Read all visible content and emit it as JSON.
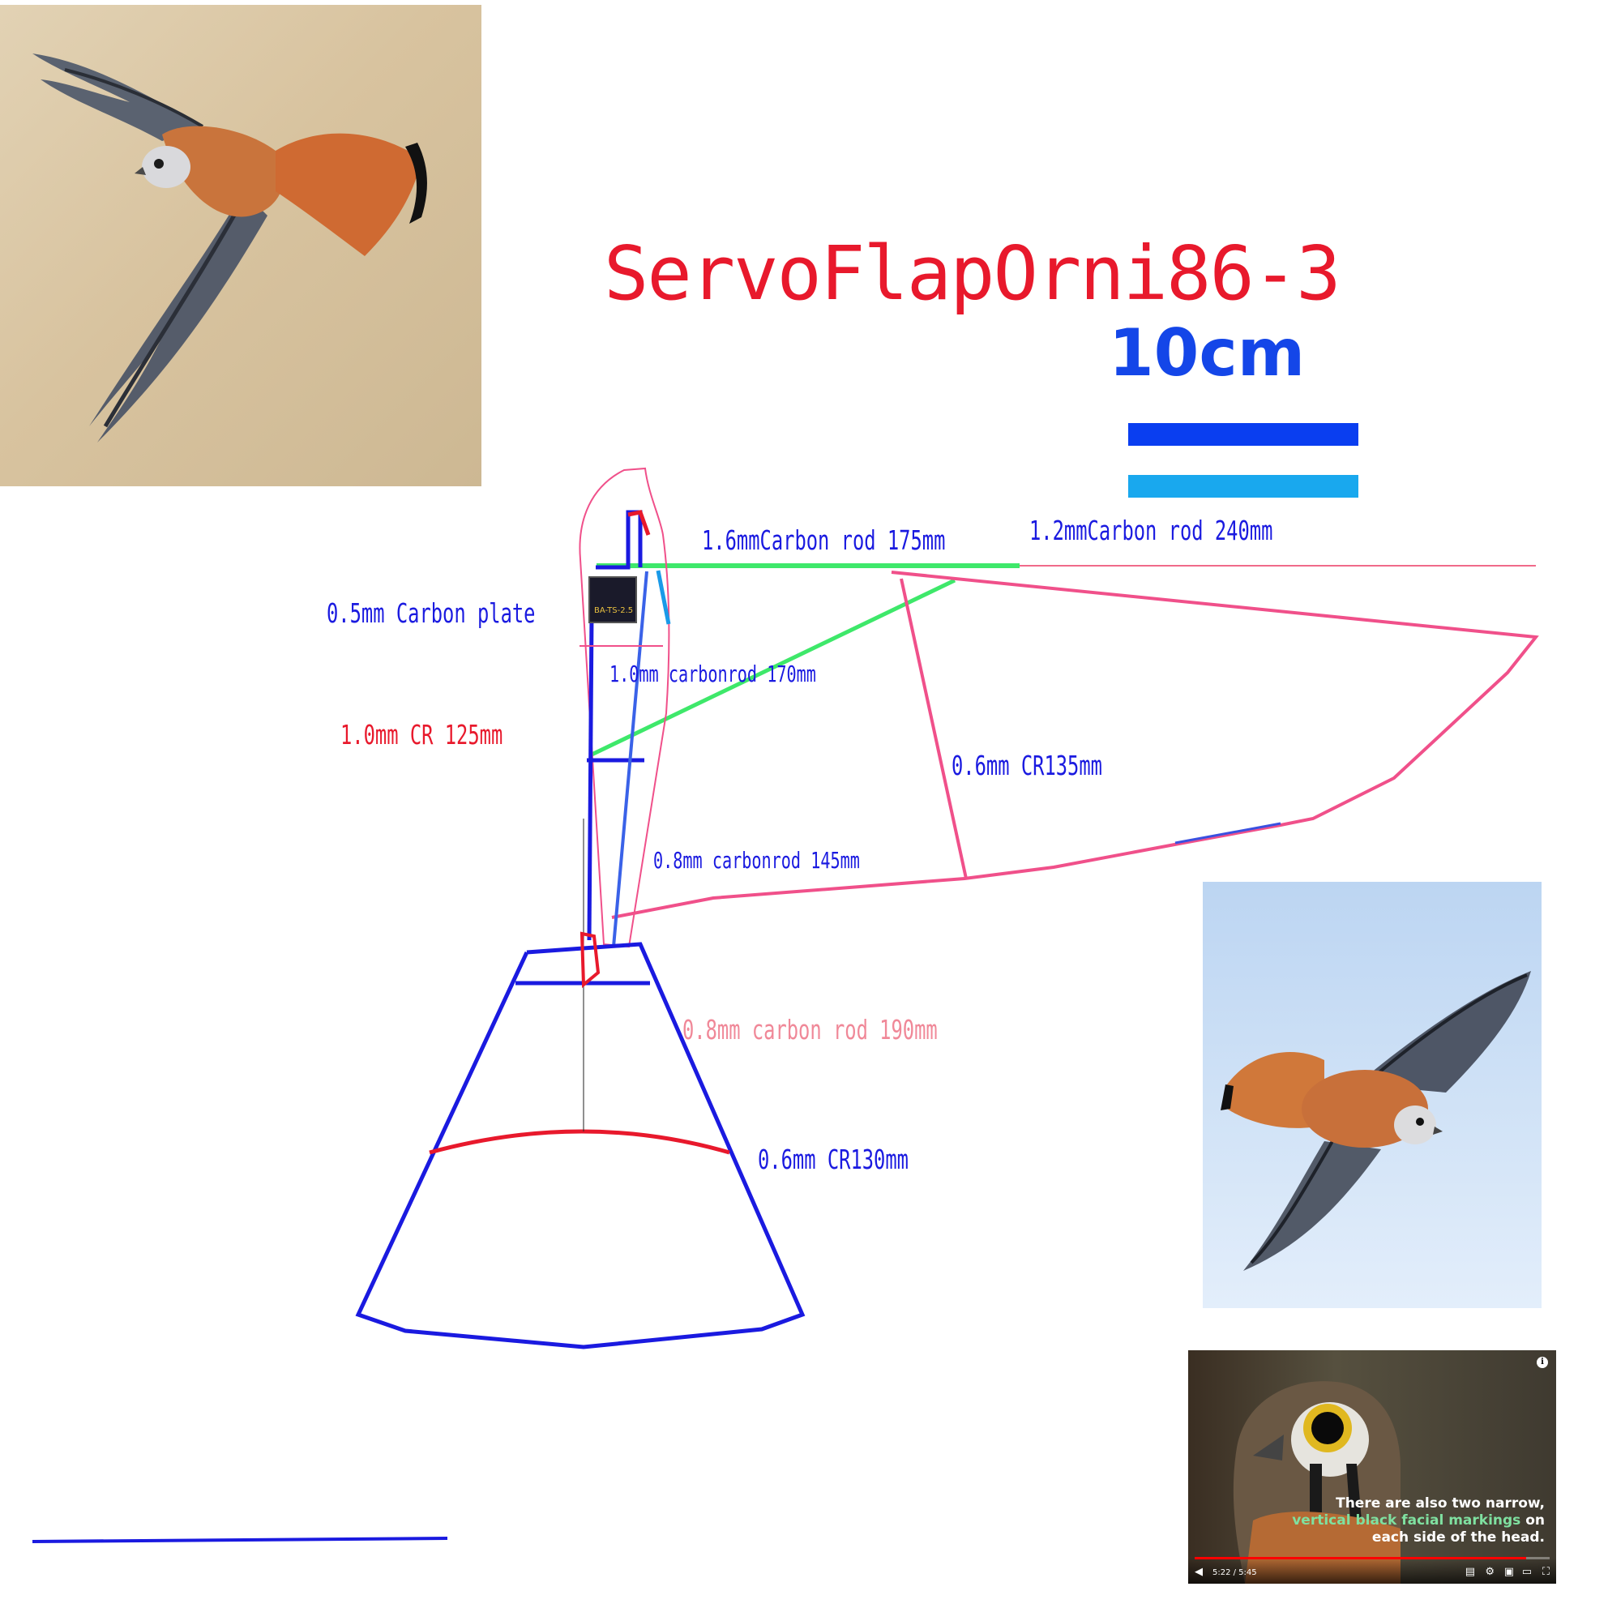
{
  "title": "ServoFlapOrni86-3",
  "scale_label": "10cm",
  "labels": {
    "rod_16": "1.6mmCarbon rod 175mm",
    "rod_12": "1.2mmCarbon rod 240mm",
    "plate_05": "0.5mm Carbon plate",
    "rod_10_170": "1.0mm carbonrod  170mm",
    "cr_10_125": "1.0mm CR 125mm",
    "cr_06_135": "0.6mm CR135mm",
    "rod_08_145": "0.8mm carbonrod  145mm",
    "rod_08_190": "0.8mm carbon rod 190mm",
    "cr_06_130": "0.6mm CR130mm"
  },
  "servo_label": "BA-TS-2.5",
  "video": {
    "caption_line1": "There are also two narrow,",
    "caption_line2a": "vertical black facial markings",
    "caption_line2b": " on",
    "caption_line3": "each side of the head.",
    "time": "5:22 / 5:45",
    "progress": 0.934
  },
  "colors": {
    "title": "#e8192c",
    "scale": "#1446e8",
    "frame_blue": "#1a1ae0",
    "wing_pink": "#f0508a",
    "rod_green": "#3ee86a"
  }
}
